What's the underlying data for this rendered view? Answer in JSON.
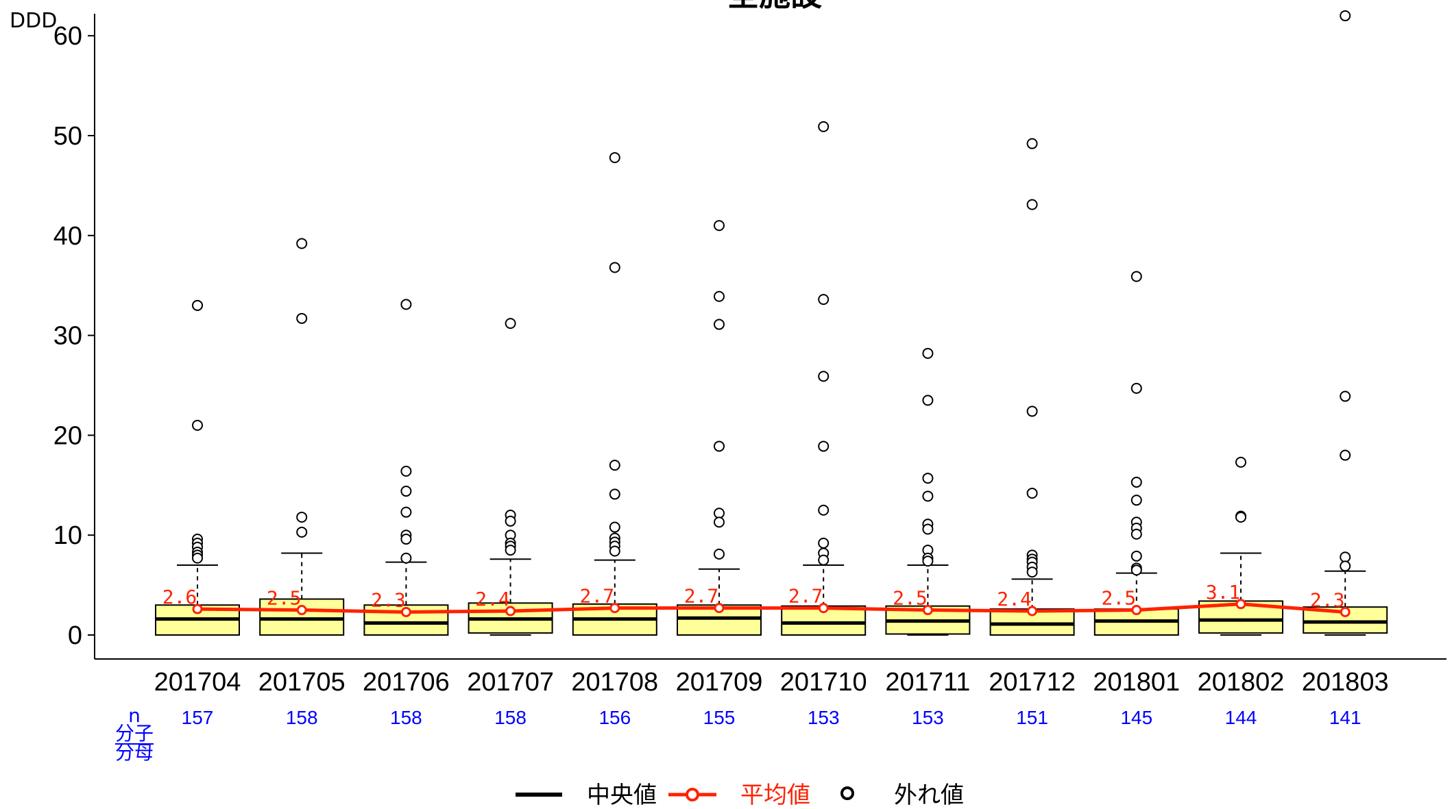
{
  "chart_data": {
    "type": "boxplot",
    "title": "全施設",
    "ylabel": "DDD",
    "ylim": [
      0,
      62
    ],
    "yticks": [
      0,
      10,
      20,
      30,
      40,
      50,
      60
    ],
    "categories": [
      "201704",
      "201705",
      "201706",
      "201707",
      "201708",
      "201709",
      "201710",
      "201711",
      "201712",
      "201801",
      "201802",
      "201803"
    ],
    "n_row_label": "n",
    "fraction_label": {
      "numerator": "分子",
      "denominator": "分母"
    },
    "n": [
      157,
      158,
      158,
      158,
      156,
      155,
      153,
      153,
      151,
      145,
      144,
      141
    ],
    "box_color": "#ffff99",
    "mean_color": "#ff2200",
    "series": [
      {
        "q1": 0,
        "median": 1.6,
        "q3": 3.0,
        "whisker_low": 0,
        "whisker_high": 7.0
      },
      {
        "q1": 0,
        "median": 1.6,
        "q3": 3.6,
        "whisker_low": 0,
        "whisker_high": 8.2
      },
      {
        "q1": 0,
        "median": 1.2,
        "q3": 3.0,
        "whisker_low": 0,
        "whisker_high": 7.3
      },
      {
        "q1": 0.2,
        "median": 1.6,
        "q3": 3.2,
        "whisker_low": 0,
        "whisker_high": 7.6
      },
      {
        "q1": 0,
        "median": 1.6,
        "q3": 3.1,
        "whisker_low": 0,
        "whisker_high": 7.5
      },
      {
        "q1": 0,
        "median": 1.7,
        "q3": 3.0,
        "whisker_low": 0,
        "whisker_high": 6.6
      },
      {
        "q1": 0,
        "median": 1.2,
        "q3": 2.9,
        "whisker_low": 0,
        "whisker_high": 7.0
      },
      {
        "q1": 0.1,
        "median": 1.4,
        "q3": 2.9,
        "whisker_low": 0,
        "whisker_high": 7.0
      },
      {
        "q1": 0,
        "median": 1.1,
        "q3": 2.6,
        "whisker_low": 0,
        "whisker_high": 5.6
      },
      {
        "q1": 0,
        "median": 1.4,
        "q3": 2.6,
        "whisker_low": 0,
        "whisker_high": 6.2
      },
      {
        "q1": 0.2,
        "median": 1.5,
        "q3": 3.4,
        "whisker_low": 0,
        "whisker_high": 8.2
      },
      {
        "q1": 0.2,
        "median": 1.3,
        "q3": 2.8,
        "whisker_low": 0,
        "whisker_high": 6.4
      }
    ],
    "means": [
      2.6,
      2.5,
      2.3,
      2.4,
      2.7,
      2.7,
      2.7,
      2.5,
      2.4,
      2.5,
      3.1,
      2.3
    ],
    "mean_labels": [
      "2.6",
      "2.5",
      "2.3",
      "2.4",
      "2.7",
      "2.7",
      "2.7",
      "2.5",
      "2.4",
      "2.5",
      "3.1",
      "2.3"
    ],
    "outliers": [
      [
        33.0,
        33.0,
        21.0,
        9.6,
        9.2,
        8.8,
        8.3,
        8.0,
        7.7
      ],
      [
        39.2,
        31.7,
        11.8,
        10.3
      ],
      [
        33.1,
        16.4,
        14.4,
        12.3,
        10.0,
        9.6,
        7.7
      ],
      [
        31.2,
        12.0,
        11.4,
        10.0,
        9.2,
        8.9,
        8.5
      ],
      [
        47.8,
        36.8,
        17.0,
        14.1,
        10.8,
        9.7,
        9.3,
        8.9,
        8.4
      ],
      [
        41.0,
        33.9,
        31.1,
        18.9,
        12.2,
        11.3,
        8.1
      ],
      [
        50.9,
        33.6,
        25.9,
        18.9,
        12.5,
        9.2,
        8.2,
        7.5
      ],
      [
        28.2,
        23.5,
        15.7,
        13.9,
        11.1,
        10.6,
        8.5,
        7.7,
        7.4
      ],
      [
        49.2,
        43.1,
        22.4,
        14.2,
        8.0,
        7.6,
        7.3,
        6.8,
        6.3
      ],
      [
        35.9,
        24.7,
        15.3,
        13.5,
        11.3,
        10.7,
        10.1,
        7.9,
        6.7,
        6.5
      ],
      [
        17.3,
        11.9,
        11.8
      ],
      [
        62.0,
        23.9,
        18.0,
        7.8,
        6.9
      ]
    ],
    "legend": [
      {
        "label": "中央値",
        "color": "#000000"
      },
      {
        "label": "平均値",
        "color": "#ff2200"
      },
      {
        "label": "外れ値",
        "color": "#000000"
      }
    ]
  }
}
